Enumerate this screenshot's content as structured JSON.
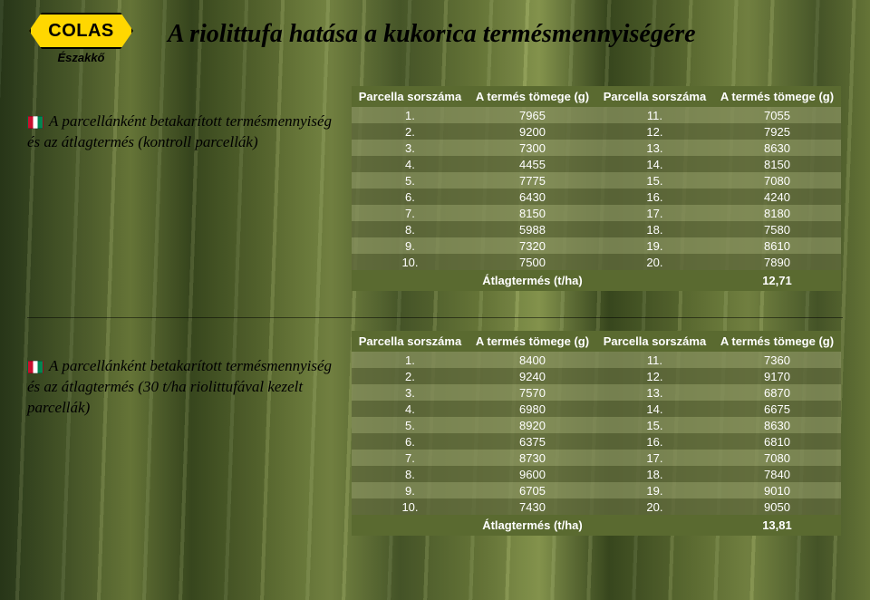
{
  "logo": {
    "text": "COLAS",
    "sub": "Északkő"
  },
  "title": "A riolittufa hatása a kukorica termésmennyiségére",
  "headers": [
    "Parcella sorszáma",
    "A termés tömege (g)",
    "Parcella sorszáma",
    "A termés tömege (g)"
  ],
  "avg_label": "Átlagtermés (t/ha)",
  "section1": {
    "desc": "A parcellánként betakarított termésmennyiség és az átlagtermés (kontroll parcellák)",
    "rows": [
      [
        "1.",
        "7965",
        "11.",
        "7055"
      ],
      [
        "2.",
        "9200",
        "12.",
        "7925"
      ],
      [
        "3.",
        "7300",
        "13.",
        "8630"
      ],
      [
        "4.",
        "4455",
        "14.",
        "8150"
      ],
      [
        "5.",
        "7775",
        "15.",
        "7080"
      ],
      [
        "6.",
        "6430",
        "16.",
        "4240"
      ],
      [
        "7.",
        "8150",
        "17.",
        "8180"
      ],
      [
        "8.",
        "5988",
        "18.",
        "7580"
      ],
      [
        "9.",
        "7320",
        "19.",
        "8610"
      ],
      [
        "10.",
        "7500",
        "20.",
        "7890"
      ]
    ],
    "avg": "12,71"
  },
  "section2": {
    "desc": "A parcellánként betakarított termésmennyiség és az átlagtermés (30 t/ha riolittufával kezelt parcellák)",
    "rows": [
      [
        "1.",
        "8400",
        "11.",
        "7360"
      ],
      [
        "2.",
        "9240",
        "12.",
        "9170"
      ],
      [
        "3.",
        "7570",
        "13.",
        "6870"
      ],
      [
        "4.",
        "6980",
        "14.",
        "6675"
      ],
      [
        "5.",
        "8920",
        "15.",
        "8630"
      ],
      [
        "6.",
        "6375",
        "16.",
        "6810"
      ],
      [
        "7.",
        "8730",
        "17.",
        "7080"
      ],
      [
        "8.",
        "9600",
        "18.",
        "7840"
      ],
      [
        "9.",
        "6705",
        "19.",
        "9010"
      ],
      [
        "10.",
        "7430",
        "20.",
        "9050"
      ]
    ],
    "avg": "13,81"
  },
  "colors": {
    "header_bg": "#5a6a30",
    "row_odd": "rgba(130,140,90,0.82)",
    "row_even": "rgba(95,105,60,0.82)",
    "text": "#ffffff",
    "title": "#000000"
  }
}
